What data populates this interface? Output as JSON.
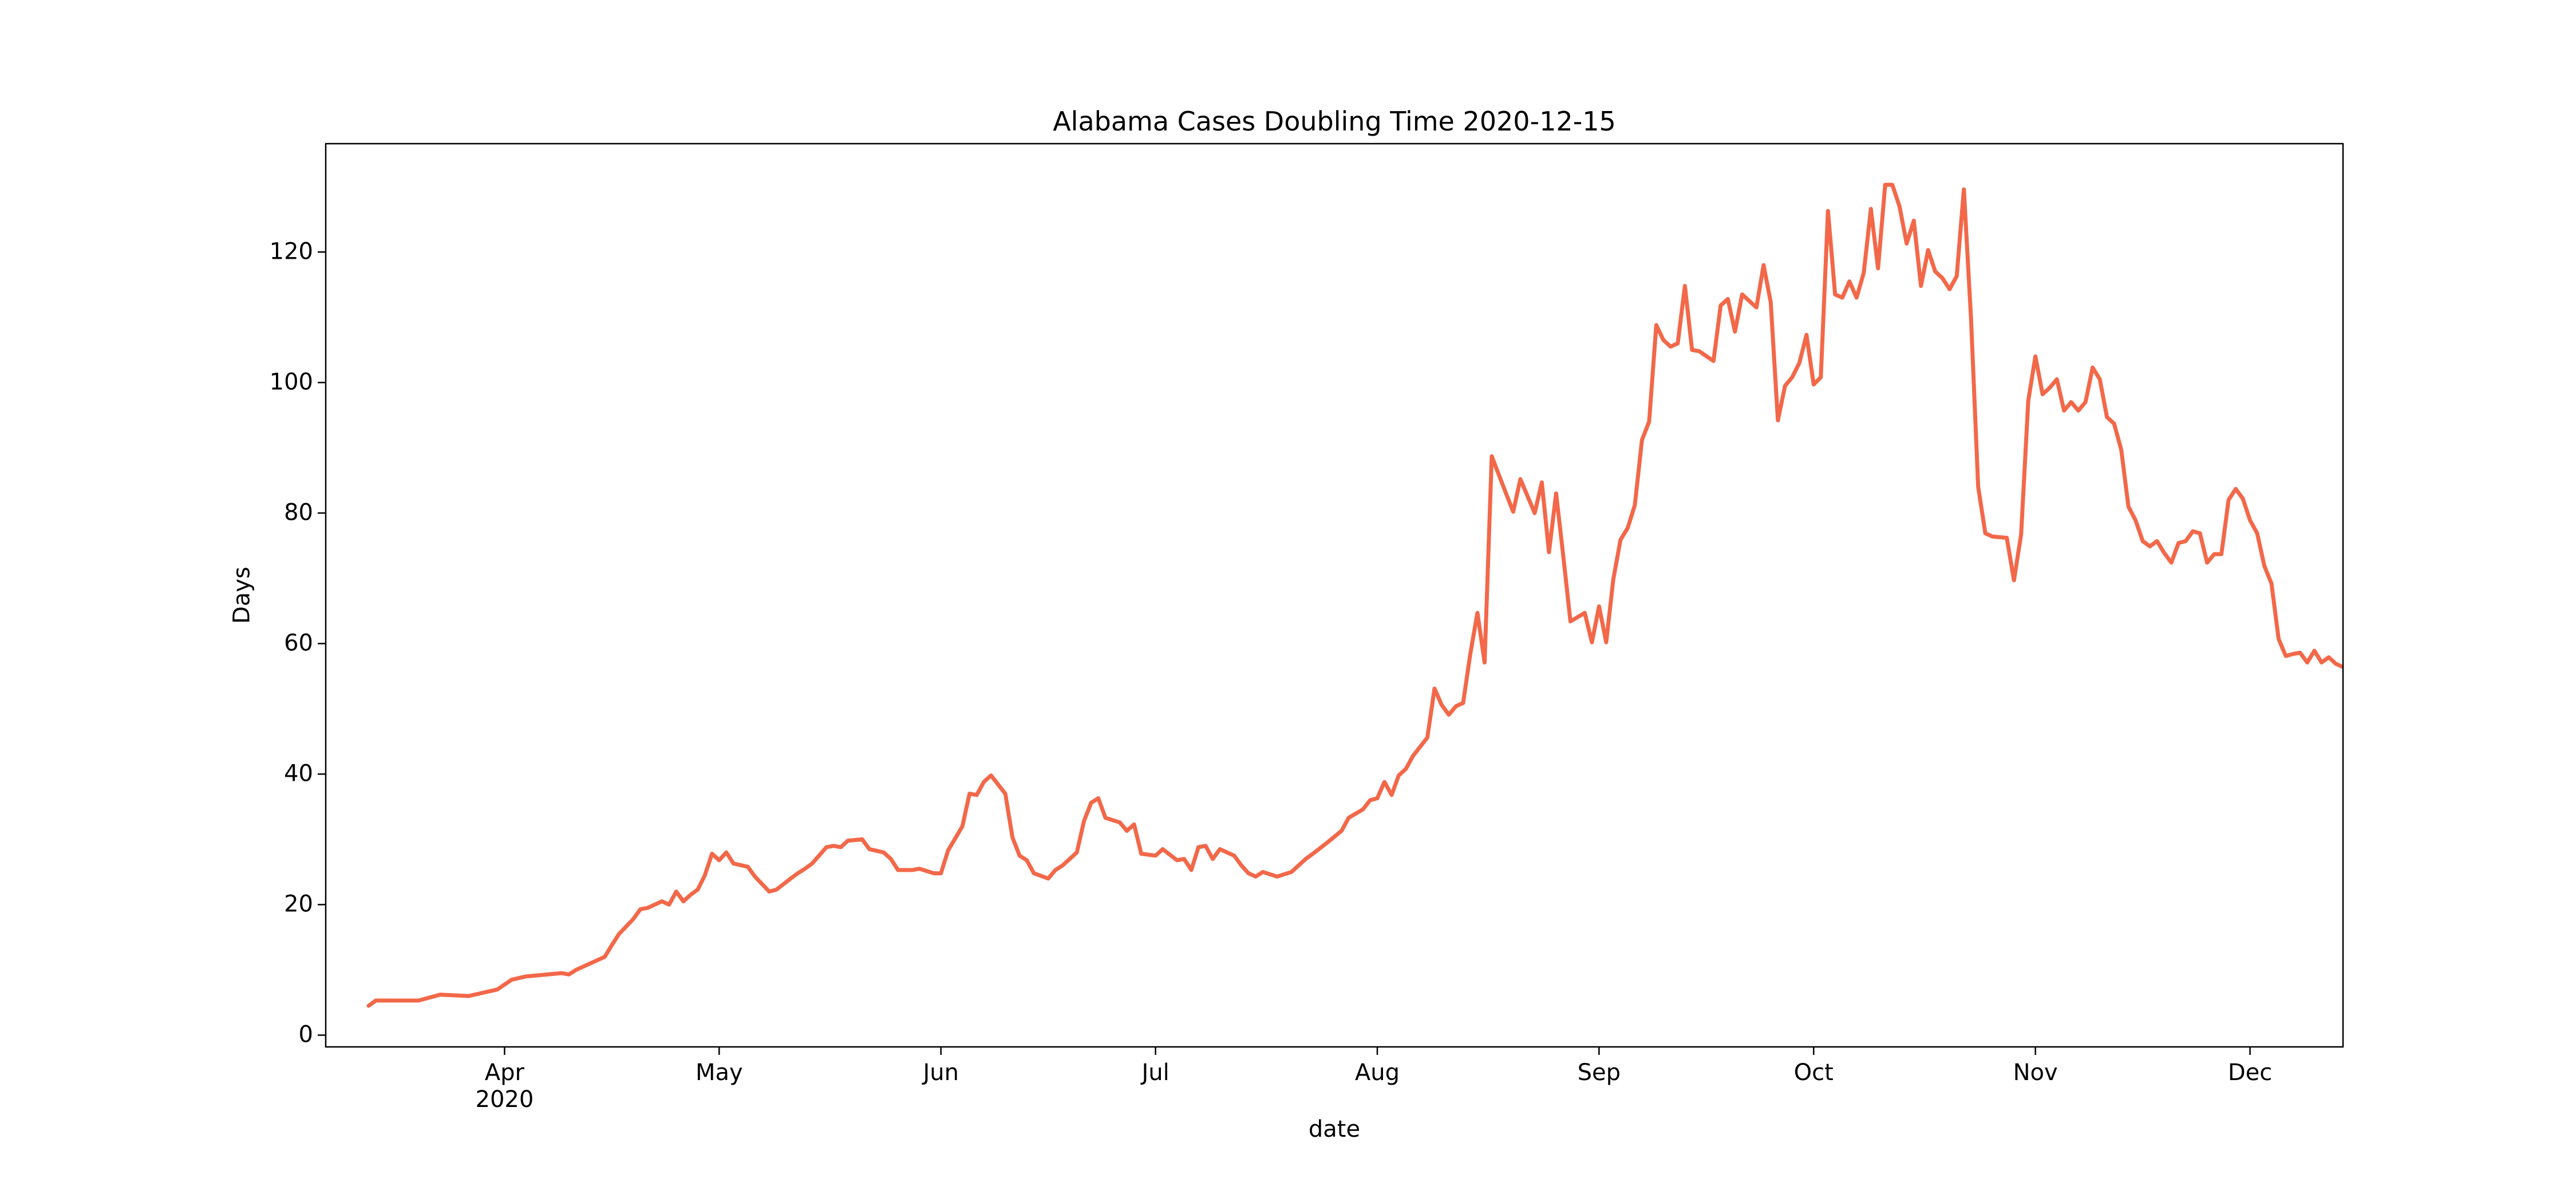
{
  "chart_data": {
    "type": "line",
    "title": "Alabama Cases Doubling Time 2020-12-15",
    "x_label": "date",
    "y_label": "Days",
    "x": [
      "2020-03-13",
      "2020-03-14",
      "2020-03-20",
      "2020-03-23",
      "2020-03-27",
      "2020-03-29",
      "2020-03-31",
      "2020-04-02",
      "2020-04-04",
      "2020-04-06",
      "2020-04-09",
      "2020-04-10",
      "2020-04-11",
      "2020-04-13",
      "2020-04-15",
      "2020-04-16",
      "2020-04-17",
      "2020-04-19",
      "2020-04-20",
      "2020-04-21",
      "2020-04-23",
      "2020-04-24",
      "2020-04-25",
      "2020-04-26",
      "2020-04-27",
      "2020-04-28",
      "2020-04-29",
      "2020-04-30",
      "2020-05-01",
      "2020-05-02",
      "2020-05-03",
      "2020-05-05",
      "2020-05-06",
      "2020-05-08",
      "2020-05-09",
      "2020-05-11",
      "2020-05-12",
      "2020-05-13",
      "2020-05-14",
      "2020-05-16",
      "2020-05-17",
      "2020-05-18",
      "2020-05-19",
      "2020-05-21",
      "2020-05-22",
      "2020-05-24",
      "2020-05-25",
      "2020-05-26",
      "2020-05-28",
      "2020-05-29",
      "2020-05-31",
      "2020-06-01",
      "2020-06-02",
      "2020-06-04",
      "2020-06-05",
      "2020-06-06",
      "2020-06-07",
      "2020-06-08",
      "2020-06-10",
      "2020-06-11",
      "2020-06-12",
      "2020-06-13",
      "2020-06-14",
      "2020-06-16",
      "2020-06-17",
      "2020-06-18",
      "2020-06-20",
      "2020-06-21",
      "2020-06-22",
      "2020-06-23",
      "2020-06-24",
      "2020-06-26",
      "2020-06-27",
      "2020-06-28",
      "2020-06-29",
      "2020-07-01",
      "2020-07-02",
      "2020-07-04",
      "2020-07-05",
      "2020-07-06",
      "2020-07-07",
      "2020-07-08",
      "2020-07-09",
      "2020-07-10",
      "2020-07-12",
      "2020-07-13",
      "2020-07-14",
      "2020-07-15",
      "2020-07-16",
      "2020-07-18",
      "2020-07-20",
      "2020-07-22",
      "2020-07-23",
      "2020-07-25",
      "2020-07-27",
      "2020-07-28",
      "2020-07-30",
      "2020-07-31",
      "2020-08-01",
      "2020-08-02",
      "2020-08-03",
      "2020-08-04",
      "2020-08-05",
      "2020-08-06",
      "2020-08-08",
      "2020-08-09",
      "2020-08-10",
      "2020-08-11",
      "2020-08-12",
      "2020-08-13",
      "2020-08-14",
      "2020-08-15",
      "2020-08-16",
      "2020-08-17",
      "2020-08-19",
      "2020-08-20",
      "2020-08-21",
      "2020-08-23",
      "2020-08-24",
      "2020-08-25",
      "2020-08-26",
      "2020-08-27",
      "2020-08-28",
      "2020-08-30",
      "2020-08-31",
      "2020-09-01",
      "2020-09-02",
      "2020-09-03",
      "2020-09-04",
      "2020-09-05",
      "2020-09-06",
      "2020-09-07",
      "2020-09-08",
      "2020-09-09",
      "2020-09-10",
      "2020-09-11",
      "2020-09-12",
      "2020-09-13",
      "2020-09-14",
      "2020-09-15",
      "2020-09-17",
      "2020-09-18",
      "2020-09-19",
      "2020-09-20",
      "2020-09-21",
      "2020-09-23",
      "2020-09-24",
      "2020-09-25",
      "2020-09-26",
      "2020-09-27",
      "2020-09-28",
      "2020-09-29",
      "2020-09-30",
      "2020-10-01",
      "2020-10-02",
      "2020-10-03",
      "2020-10-04",
      "2020-10-05",
      "2020-10-06",
      "2020-10-07",
      "2020-10-08",
      "2020-10-09",
      "2020-10-10",
      "2020-10-11",
      "2020-10-12",
      "2020-10-13",
      "2020-10-14",
      "2020-10-15",
      "2020-10-16",
      "2020-10-17",
      "2020-10-18",
      "2020-10-19",
      "2020-10-20",
      "2020-10-21",
      "2020-10-22",
      "2020-10-23",
      "2020-10-24",
      "2020-10-25",
      "2020-10-26",
      "2020-10-28",
      "2020-10-29",
      "2020-10-30",
      "2020-10-31",
      "2020-11-01",
      "2020-11-02",
      "2020-11-03",
      "2020-11-04",
      "2020-11-05",
      "2020-11-06",
      "2020-11-07",
      "2020-11-08",
      "2020-11-09",
      "2020-11-10",
      "2020-11-11",
      "2020-11-12",
      "2020-11-13",
      "2020-11-14",
      "2020-11-15",
      "2020-11-16",
      "2020-11-17",
      "2020-11-18",
      "2020-11-19",
      "2020-11-20",
      "2020-11-21",
      "2020-11-22",
      "2020-11-23",
      "2020-11-24",
      "2020-11-25",
      "2020-11-26",
      "2020-11-27",
      "2020-11-28",
      "2020-11-29",
      "2020-11-30",
      "2020-12-01",
      "2020-12-02",
      "2020-12-03",
      "2020-12-04",
      "2020-12-05",
      "2020-12-06",
      "2020-12-07",
      "2020-12-08",
      "2020-12-09",
      "2020-12-10",
      "2020-12-11",
      "2020-12-12",
      "2020-12-13",
      "2020-12-14"
    ],
    "series": [
      {
        "color": "#f26849",
        "values": [
          4.5,
          5.3,
          5.3,
          6.2,
          6.0,
          6.5,
          7.0,
          8.5,
          9.0,
          9.2,
          9.5,
          9.3,
          10,
          11,
          12,
          13.8,
          15.5,
          17.8,
          19.3,
          19.5,
          20.5,
          20,
          22,
          20.5,
          21.5,
          22.3,
          24.5,
          27.8,
          26.8,
          28,
          26.3,
          25.8,
          24.3,
          22,
          22.3,
          24,
          24.8,
          25.5,
          26.3,
          28.8,
          29,
          28.8,
          29.8,
          30,
          28.5,
          28,
          27,
          25.3,
          25.3,
          25.5,
          24.8,
          24.8,
          28.3,
          32,
          37,
          36.8,
          38.8,
          39.8,
          37,
          30.3,
          27.5,
          26.8,
          24.8,
          24,
          25.3,
          26,
          28,
          32.8,
          35.6,
          36.3,
          33.3,
          32.6,
          31.3,
          32.3,
          27.8,
          27.5,
          28.5,
          26.8,
          27,
          25.3,
          28.8,
          29,
          27,
          28.5,
          27.5,
          26,
          24.8,
          24.3,
          25,
          24.3,
          25,
          27,
          27.8,
          29.5,
          31.3,
          33.3,
          34.6,
          36,
          36.3,
          38.8,
          36.8,
          39.8,
          40.8,
          42.8,
          45.6,
          53.1,
          50.6,
          49.1,
          50.4,
          50.9,
          58.4,
          64.7,
          57.1,
          88.7,
          83,
          80.2,
          85.2,
          80,
          84.7,
          74,
          83,
          73.4,
          63.4,
          64.7,
          60.2,
          65.7,
          60.2,
          69.9,
          75.9,
          77.7,
          81.2,
          91.2,
          94,
          108.8,
          106.5,
          105.5,
          106,
          114.8,
          105,
          104.8,
          103.3,
          111.8,
          112.8,
          107.8,
          113.5,
          111.5,
          118,
          112.3,
          94.2,
          99.5,
          100.8,
          103,
          107.3,
          99.7,
          100.8,
          126.3,
          113.5,
          113,
          115.5,
          113,
          116.8,
          126.6,
          117.5,
          130.3,
          130.3,
          127,
          121.3,
          124.8,
          114.8,
          120.3,
          117,
          116,
          114.3,
          116.3,
          129.6,
          109.8,
          84,
          76.9,
          76.4,
          76.2,
          69.7,
          76.7,
          97.2,
          104,
          98.2,
          99.2,
          100.5,
          95.7,
          97,
          95.7,
          97,
          102.3,
          100.5,
          94.7,
          93.7,
          89.7,
          81,
          78.9,
          75.7,
          74.9,
          75.7,
          73.9,
          72.4,
          75.4,
          75.7,
          77.2,
          76.9,
          72.4,
          73.7,
          73.7,
          82,
          83.7,
          82.2,
          78.9,
          76.9,
          71.9,
          69.2,
          60.7,
          58.1,
          58.4,
          58.6,
          57.1,
          58.9,
          57.1,
          57.9,
          56.9,
          56.4
        ]
      }
    ],
    "xlim": [
      "2020-03-07",
      "2020-12-14"
    ],
    "xticks": [
      {
        "value": "2020-04-01",
        "label": "Apr\n2020"
      },
      {
        "value": "2020-05-01",
        "label": "May"
      },
      {
        "value": "2020-06-01",
        "label": "Jun"
      },
      {
        "value": "2020-07-01",
        "label": "Jul"
      },
      {
        "value": "2020-08-01",
        "label": "Aug"
      },
      {
        "value": "2020-09-01",
        "label": "Sep"
      },
      {
        "value": "2020-10-01",
        "label": "Oct"
      },
      {
        "value": "2020-11-01",
        "label": "Nov"
      },
      {
        "value": "2020-12-01",
        "label": "Dec"
      }
    ],
    "ylim": [
      -1.8,
      136.6
    ],
    "yticks": [
      0,
      20,
      40,
      60,
      80,
      100,
      120
    ],
    "grid": false
  }
}
